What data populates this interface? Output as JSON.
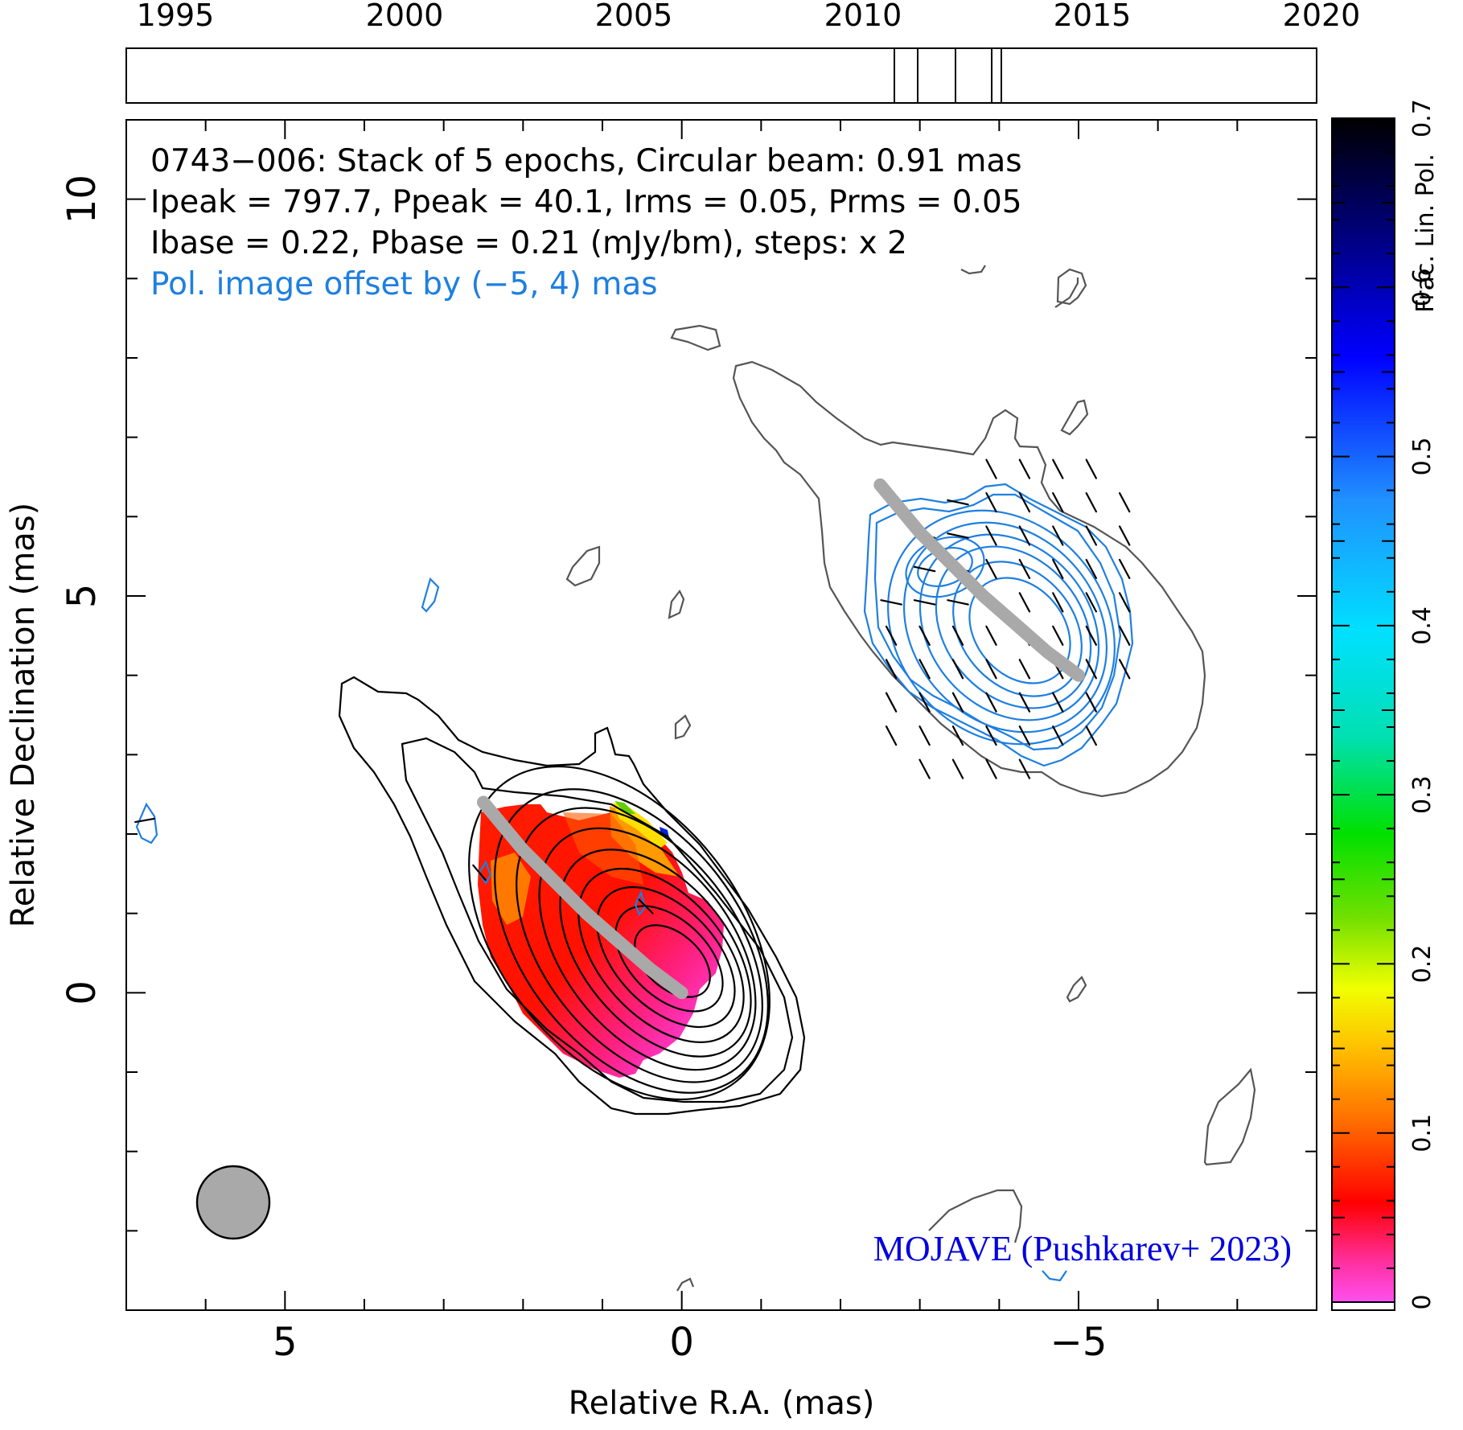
{
  "timeline": {
    "years": [
      "1995",
      "2000",
      "2005",
      "2010",
      "2015",
      "2020"
    ],
    "year_range": [
      1993.0,
      2019.0
    ],
    "epochs": [
      2011.8,
      2012.3,
      2013.1,
      2013.9,
      2014.1
    ]
  },
  "header": {
    "line1": "0743−006: Stack of 5 epochs, Circular beam: 0.91 mas",
    "line2": "Ipeak = 797.7, Ppeak = 40.1, Irms = 0.05, Prms = 0.05",
    "line3": "Ibase = 0.22, Pbase = 0.21 (mJy/bm), steps: x 2",
    "line4": "Pol. image offset by (−5, 4) mas"
  },
  "axes": {
    "xlabel": "Relative R.A. (mas)",
    "ylabel": "Relative Declination (mas)",
    "xticks": [
      "5",
      "0",
      "−5"
    ],
    "yticks": [
      "10",
      "5",
      "0"
    ],
    "colorbar_label": "Frac. Lin. Pol.",
    "colorbar_ticks": [
      "0",
      "0.1",
      "0.2",
      "0.3",
      "0.4",
      "0.5",
      "0.6",
      "0.7"
    ]
  },
  "credit": "MOJAVE (Pushkarev+ 2023)",
  "colors": {
    "intensity_contour": "#000000",
    "outer_contour": "#555555",
    "pol_contour": "#1e7fe0",
    "ridge": "#a9a9a9",
    "beam_fill": "#a9a9a9",
    "offset_text": "#1e7fe0",
    "credit_text": "#0000e0"
  },
  "chart_data": {
    "type": "heatmap",
    "title": "0743−006: Stack of 5 epochs, Circular beam: 0.91 mas",
    "xlabel": "Relative R.A. (mas)",
    "ylabel": "Relative Declination (mas)",
    "xlim": [
      7,
      -8
    ],
    "ylim": [
      -4,
      11
    ],
    "colorbar_range": [
      0,
      0.7
    ],
    "core": [
      0,
      0
    ],
    "beam_diameter_mas": 0.91,
    "intensity_peak_mJy_per_beam": 797.7,
    "pol_peak_mJy_per_beam": 40.1,
    "intensity_rms": 0.05,
    "pol_rms": 0.05,
    "intensity_base": 0.22,
    "pol_base": 0.21,
    "contour_step_factor": 2,
    "pol_offset_mas": [
      -5,
      4
    ],
    "epochs": 5,
    "ridge_line": {
      "x": [
        0.0,
        0.4,
        0.8,
        1.2,
        1.6,
        2.0,
        2.5
      ],
      "y": [
        0.0,
        0.3,
        0.65,
        1.0,
        1.4,
        1.8,
        2.4
      ]
    }
  }
}
